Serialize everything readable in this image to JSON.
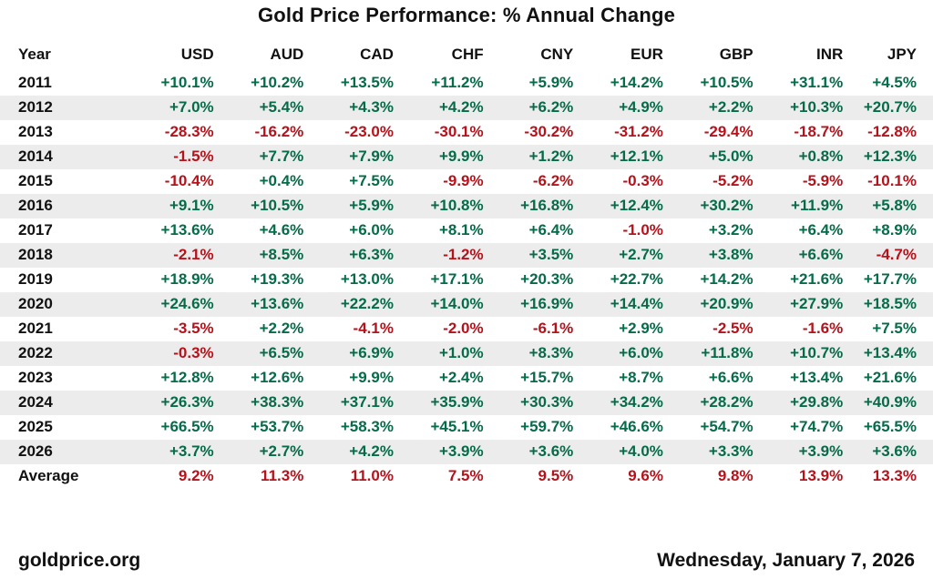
{
  "title": "Gold Price Performance: % Annual Change",
  "footer": {
    "source": "goldprice.org",
    "date": "Wednesday, January 7, 2026"
  },
  "colors": {
    "positive": "#056b49",
    "negative": "#b5121b",
    "stripe": "#ececec"
  },
  "chart_data": {
    "type": "table",
    "columns": [
      "Year",
      "USD",
      "AUD",
      "CAD",
      "CHF",
      "CNY",
      "EUR",
      "GBP",
      "INR",
      "JPY"
    ],
    "rows": [
      {
        "year": "2011",
        "values": [
          "+10.1%",
          "+10.2%",
          "+13.5%",
          "+11.2%",
          "+5.9%",
          "+14.2%",
          "+10.5%",
          "+31.1%",
          "+4.5%"
        ]
      },
      {
        "year": "2012",
        "values": [
          "+7.0%",
          "+5.4%",
          "+4.3%",
          "+4.2%",
          "+6.2%",
          "+4.9%",
          "+2.2%",
          "+10.3%",
          "+20.7%"
        ]
      },
      {
        "year": "2013",
        "values": [
          "-28.3%",
          "-16.2%",
          "-23.0%",
          "-30.1%",
          "-30.2%",
          "-31.2%",
          "-29.4%",
          "-18.7%",
          "-12.8%"
        ]
      },
      {
        "year": "2014",
        "values": [
          "-1.5%",
          "+7.7%",
          "+7.9%",
          "+9.9%",
          "+1.2%",
          "+12.1%",
          "+5.0%",
          "+0.8%",
          "+12.3%"
        ]
      },
      {
        "year": "2015",
        "values": [
          "-10.4%",
          "+0.4%",
          "+7.5%",
          "-9.9%",
          "-6.2%",
          "-0.3%",
          "-5.2%",
          "-5.9%",
          "-10.1%"
        ]
      },
      {
        "year": "2016",
        "values": [
          "+9.1%",
          "+10.5%",
          "+5.9%",
          "+10.8%",
          "+16.8%",
          "+12.4%",
          "+30.2%",
          "+11.9%",
          "+5.8%"
        ]
      },
      {
        "year": "2017",
        "values": [
          "+13.6%",
          "+4.6%",
          "+6.0%",
          "+8.1%",
          "+6.4%",
          "-1.0%",
          "+3.2%",
          "+6.4%",
          "+8.9%"
        ]
      },
      {
        "year": "2018",
        "values": [
          "-2.1%",
          "+8.5%",
          "+6.3%",
          "-1.2%",
          "+3.5%",
          "+2.7%",
          "+3.8%",
          "+6.6%",
          "-4.7%"
        ]
      },
      {
        "year": "2019",
        "values": [
          "+18.9%",
          "+19.3%",
          "+13.0%",
          "+17.1%",
          "+20.3%",
          "+22.7%",
          "+14.2%",
          "+21.6%",
          "+17.7%"
        ]
      },
      {
        "year": "2020",
        "values": [
          "+24.6%",
          "+13.6%",
          "+22.2%",
          "+14.0%",
          "+16.9%",
          "+14.4%",
          "+20.9%",
          "+27.9%",
          "+18.5%"
        ]
      },
      {
        "year": "2021",
        "values": [
          "-3.5%",
          "+2.2%",
          "-4.1%",
          "-2.0%",
          "-6.1%",
          "+2.9%",
          "-2.5%",
          "-1.6%",
          "+7.5%"
        ]
      },
      {
        "year": "2022",
        "values": [
          "-0.3%",
          "+6.5%",
          "+6.9%",
          "+1.0%",
          "+8.3%",
          "+6.0%",
          "+11.8%",
          "+10.7%",
          "+13.4%"
        ]
      },
      {
        "year": "2023",
        "values": [
          "+12.8%",
          "+12.6%",
          "+9.9%",
          "+2.4%",
          "+15.7%",
          "+8.7%",
          "+6.6%",
          "+13.4%",
          "+21.6%"
        ]
      },
      {
        "year": "2024",
        "values": [
          "+26.3%",
          "+38.3%",
          "+37.1%",
          "+35.9%",
          "+30.3%",
          "+34.2%",
          "+28.2%",
          "+29.8%",
          "+40.9%"
        ]
      },
      {
        "year": "2025",
        "values": [
          "+66.5%",
          "+53.7%",
          "+58.3%",
          "+45.1%",
          "+59.7%",
          "+46.6%",
          "+54.7%",
          "+74.7%",
          "+65.5%"
        ]
      },
      {
        "year": "2026",
        "values": [
          "+3.7%",
          "+2.7%",
          "+4.2%",
          "+3.9%",
          "+3.6%",
          "+4.0%",
          "+3.3%",
          "+3.9%",
          "+3.6%"
        ]
      },
      {
        "year": "Average",
        "values": [
          "9.2%",
          "11.3%",
          "11.0%",
          "7.5%",
          "9.5%",
          "9.6%",
          "9.8%",
          "13.9%",
          "13.3%"
        ]
      }
    ]
  }
}
